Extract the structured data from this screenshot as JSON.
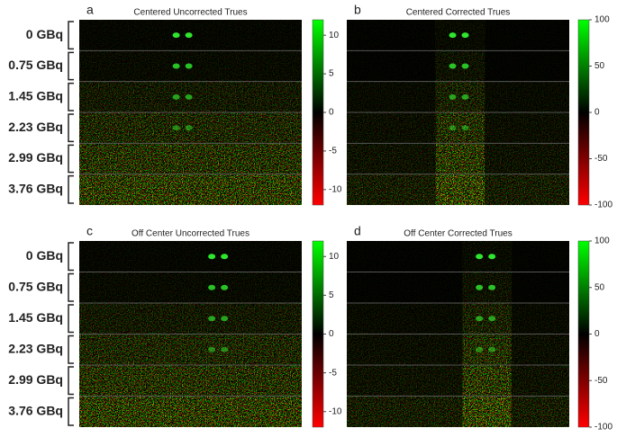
{
  "panels": [
    {
      "letter": "a",
      "title": "Centered Uncorrected Trues",
      "row_labels": [
        "0 GBq",
        "0.75 GBq",
        "1.45 GBq",
        "2.23 GBq",
        "2.99 GBq",
        "3.76 GBq"
      ],
      "colorbar": {
        "lim": [
          -12,
          12
        ],
        "ticks": [
          10,
          5,
          0,
          -5,
          -10
        ],
        "colors": [
          "#00ff00",
          "#000000",
          "#ff0000"
        ]
      }
    },
    {
      "letter": "b",
      "title": "Centered Corrected Trues",
      "colorbar": {
        "lim": [
          -100,
          100
        ],
        "ticks": [
          100,
          50,
          0,
          -50,
          -100
        ],
        "colors": [
          "#00ff00",
          "#000000",
          "#ff0000"
        ]
      }
    },
    {
      "letter": "c",
      "title": "Off Center Uncorrected Trues",
      "row_labels": [
        "0 GBq",
        "0.75 GBq",
        "1.45 GBq",
        "2.23 GBq",
        "2.99 GBq",
        "3.76 GBq"
      ],
      "colorbar": {
        "lim": [
          -12,
          12
        ],
        "ticks": [
          10,
          5,
          0,
          -5,
          -10
        ],
        "colors": [
          "#00ff00",
          "#000000",
          "#ff0000"
        ]
      }
    },
    {
      "letter": "d",
      "title": "Off Center Corrected Trues",
      "colorbar": {
        "lim": [
          -100,
          100
        ],
        "ticks": [
          100,
          50,
          0,
          -50,
          -100
        ],
        "colors": [
          "#00ff00",
          "#000000",
          "#ff0000"
        ]
      }
    }
  ]
}
